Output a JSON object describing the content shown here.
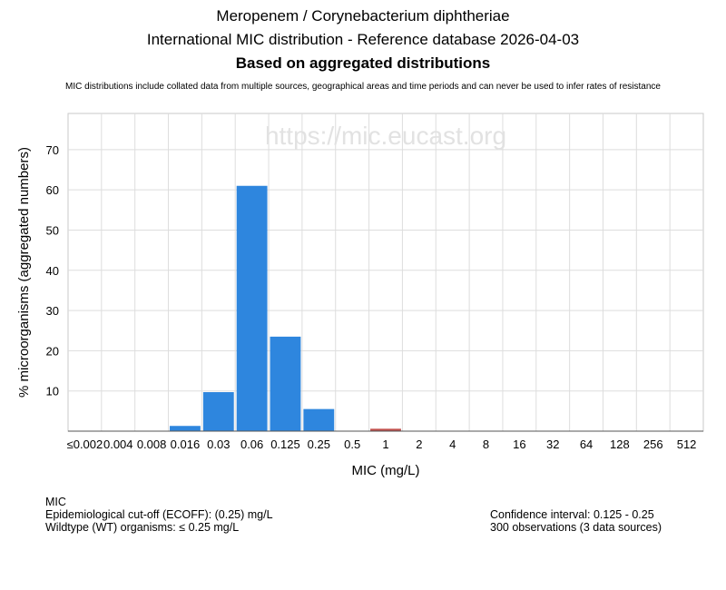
{
  "header": {
    "title": "Meropenem / Corynebacterium diphtheriae",
    "subtitle": "International MIC distribution - Reference database 2026-04-03",
    "subtitle2": "Based on aggregated distributions",
    "note": "MIC distributions include collated data from multiple sources, geographical areas and time periods and can never be used to infer rates of resistance"
  },
  "chart_data": {
    "type": "bar",
    "watermark": "https://mic.eucast.org",
    "xlabel": "MIC (mg/L)",
    "ylabel": "% microorganisms (aggregated numbers)",
    "categories": [
      "≤0.002",
      "0.004",
      "0.008",
      "0.016",
      "0.03",
      "0.06",
      "0.125",
      "0.25",
      "0.5",
      "1",
      "2",
      "4",
      "8",
      "16",
      "32",
      "64",
      "128",
      "256",
      "512"
    ],
    "values": [
      0,
      0,
      0,
      1.3,
      9.7,
      61,
      23.5,
      5.5,
      0,
      0.6,
      0,
      0,
      0,
      0,
      0,
      0,
      0,
      0,
      0
    ],
    "bar_colors": [
      "#2e86de",
      "#2e86de",
      "#2e86de",
      "#2e86de",
      "#2e86de",
      "#2e86de",
      "#2e86de",
      "#2e86de",
      "#2e86de",
      "#c0504d",
      "#2e86de",
      "#2e86de",
      "#2e86de",
      "#2e86de",
      "#2e86de",
      "#2e86de",
      "#2e86de",
      "#2e86de",
      "#2e86de"
    ],
    "yticks": [
      10,
      20,
      30,
      40,
      50,
      60,
      70
    ],
    "ylim": [
      0,
      79
    ],
    "grid": true
  },
  "footer": {
    "left": [
      "MIC",
      "Epidemiological cut-off (ECOFF): (0.25) mg/L",
      "Wildtype (WT) organisms: ≤ 0.25 mg/L"
    ],
    "right": [
      "Confidence interval: 0.125 - 0.25",
      "300 observations (3 data sources)"
    ]
  }
}
